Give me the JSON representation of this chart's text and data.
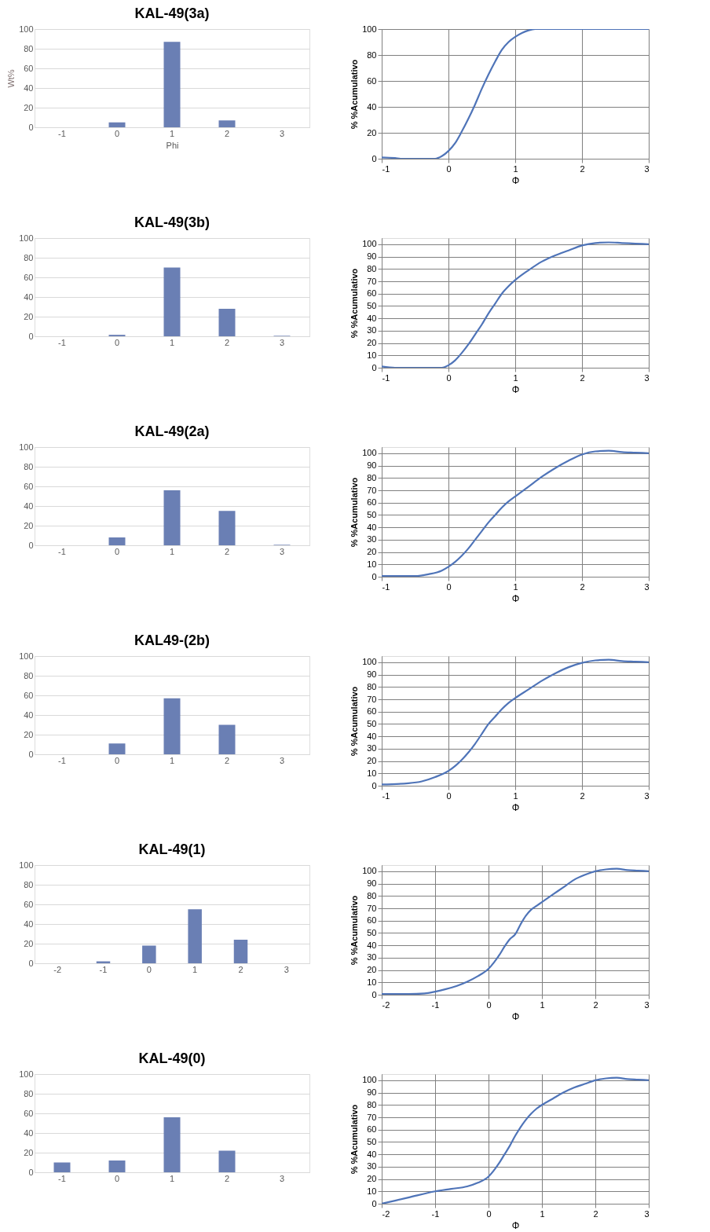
{
  "chart_data": [
    {
      "type": "bar",
      "title": "KAL-49(3a)",
      "xlabel": "Phi",
      "ylabel": "Wt%",
      "categories": [
        "-1",
        "0",
        "1",
        "2",
        "3"
      ],
      "values": [
        0,
        5,
        87,
        7,
        0
      ],
      "color": "#6a7fb4",
      "ylim": [
        0,
        100
      ],
      "yticks": [
        0,
        20,
        40,
        60,
        80,
        100
      ],
      "grid": "y"
    },
    {
      "type": "line",
      "xlabel": "Φ",
      "ylabel": "% %Acumulativo",
      "color": "#4f74b8",
      "x": [
        -1,
        -0.8,
        -0.7,
        -0.2,
        -0.1,
        0,
        0.1,
        0.2,
        0.3,
        0.4,
        0.5,
        0.6,
        0.7,
        0.8,
        0.9,
        1,
        1.1,
        1.2,
        1.3,
        2,
        3
      ],
      "values": [
        1,
        0.5,
        0,
        0,
        2,
        6,
        12,
        21,
        31,
        42,
        54,
        65,
        75,
        84,
        90,
        94,
        97,
        99,
        100,
        100,
        100
      ],
      "xlim": [
        -1,
        3
      ],
      "xticks": [
        -1,
        0,
        1,
        2,
        3
      ],
      "ylim": [
        0,
        100
      ],
      "yticks": [
        0,
        20,
        40,
        60,
        80,
        100
      ],
      "grid": true
    },
    {
      "type": "bar",
      "title": "KAL-49(3b)",
      "categories": [
        "-1",
        "0",
        "1",
        "2",
        "3"
      ],
      "values": [
        0,
        1.5,
        70,
        28,
        0.5
      ],
      "color": "#6a7fb4",
      "ylim": [
        0,
        100
      ],
      "yticks": [
        0,
        20,
        40,
        60,
        80,
        100
      ],
      "grid": "y"
    },
    {
      "type": "line",
      "xlabel": "Φ",
      "ylabel": "% %Acumulativo",
      "color": "#4f74b8",
      "x": [
        -1,
        -0.8,
        -0.1,
        0,
        0.1,
        0.2,
        0.3,
        0.4,
        0.5,
        0.6,
        0.7,
        0.8,
        0.9,
        1,
        1.2,
        1.4,
        1.6,
        1.8,
        2,
        2.2,
        2.4,
        2.6,
        2.8,
        3
      ],
      "values": [
        1,
        0,
        0,
        2,
        6,
        12,
        19,
        27,
        35,
        44,
        52,
        60,
        66,
        71,
        79,
        86,
        91,
        95,
        99,
        101,
        101.5,
        101,
        100.5,
        100
      ],
      "xlim": [
        -1,
        3
      ],
      "xticks": [
        -1,
        0,
        1,
        2,
        3
      ],
      "ylim": [
        0,
        105
      ],
      "yticks": [
        0,
        10,
        20,
        30,
        40,
        50,
        60,
        70,
        80,
        90,
        100
      ],
      "grid": true
    },
    {
      "type": "bar",
      "title": "KAL-49(2a)",
      "categories": [
        "-1",
        "0",
        "1",
        "2",
        "3"
      ],
      "values": [
        0,
        8,
        56,
        35,
        0.5
      ],
      "color": "#6a7fb4",
      "ylim": [
        0,
        100
      ],
      "yticks": [
        0,
        20,
        40,
        60,
        80,
        100
      ],
      "grid": "y"
    },
    {
      "type": "line",
      "xlabel": "Φ",
      "ylabel": "% %Acumulativo",
      "color": "#4f74b8",
      "x": [
        -1,
        -0.5,
        -0.3,
        -0.1,
        0,
        0.1,
        0.2,
        0.3,
        0.4,
        0.5,
        0.6,
        0.7,
        0.8,
        0.9,
        1,
        1.2,
        1.4,
        1.6,
        1.8,
        2,
        2.2,
        2.4,
        2.6,
        2.8,
        3
      ],
      "values": [
        0.5,
        0.5,
        2,
        5,
        8,
        12,
        17,
        23,
        30,
        37,
        44,
        50,
        56,
        61,
        65,
        73,
        81,
        88,
        94,
        99,
        101.5,
        102,
        101,
        100.5,
        100
      ],
      "xlim": [
        -1,
        3
      ],
      "xticks": [
        -1,
        0,
        1,
        2,
        3
      ],
      "ylim": [
        0,
        105
      ],
      "yticks": [
        0,
        10,
        20,
        30,
        40,
        50,
        60,
        70,
        80,
        90,
        100
      ],
      "grid": true
    },
    {
      "type": "bar",
      "title": "KAL49-(2b)",
      "categories": [
        "-1",
        "0",
        "1",
        "2",
        "3"
      ],
      "values": [
        null,
        11,
        57,
        30,
        null
      ],
      "color": "#6a7fb4",
      "ylim": [
        0,
        100
      ],
      "yticks": [
        0,
        20,
        40,
        60,
        80,
        100
      ],
      "grid": "y"
    },
    {
      "type": "line",
      "xlabel": "Φ",
      "ylabel": "% %Acumulativo",
      "color": "#4f74b8",
      "x": [
        -1,
        -0.6,
        -0.4,
        -0.2,
        0,
        0.1,
        0.2,
        0.3,
        0.4,
        0.5,
        0.6,
        0.7,
        0.8,
        0.9,
        1,
        1.2,
        1.4,
        1.6,
        1.8,
        2,
        2.2,
        2.4,
        2.6,
        2.8,
        3
      ],
      "values": [
        1,
        2,
        3.5,
        7,
        12,
        16,
        21,
        27,
        34,
        42,
        50,
        56,
        62,
        67,
        71,
        78,
        85,
        91,
        96,
        99.5,
        101.5,
        102,
        101,
        100.5,
        100
      ],
      "xlim": [
        -1,
        3
      ],
      "xticks": [
        -1,
        0,
        1,
        2,
        3
      ],
      "ylim": [
        0,
        105
      ],
      "yticks": [
        0,
        10,
        20,
        30,
        40,
        50,
        60,
        70,
        80,
        90,
        100
      ],
      "grid": true
    },
    {
      "type": "bar",
      "title": "KAL-49(1)",
      "categories": [
        "-2",
        "-1",
        "0",
        "1",
        "2",
        "3"
      ],
      "values": [
        0,
        2,
        18,
        55,
        24,
        0
      ],
      "color": "#6a7fb4",
      "ylim": [
        0,
        100
      ],
      "yticks": [
        0,
        20,
        40,
        60,
        80,
        100
      ],
      "grid": "y"
    },
    {
      "type": "line",
      "xlabel": "Φ",
      "ylabel": "% %Acumulativo",
      "color": "#4f74b8",
      "x": [
        -2,
        -1.5,
        -1.2,
        -1,
        -0.8,
        -0.6,
        -0.4,
        -0.2,
        0,
        0.1,
        0.2,
        0.3,
        0.4,
        0.5,
        0.6,
        0.7,
        0.8,
        0.9,
        1,
        1.2,
        1.4,
        1.6,
        1.8,
        2,
        2.2,
        2.4,
        2.6,
        2.8,
        3
      ],
      "values": [
        0.5,
        0.5,
        1,
        2.5,
        4.5,
        7,
        10.5,
        15,
        21,
        26,
        32,
        39,
        45,
        49,
        57,
        64,
        69,
        72,
        75,
        81,
        87,
        93,
        97,
        100,
        101.5,
        102,
        101,
        100.5,
        100
      ],
      "xlim": [
        -2,
        3
      ],
      "xticks": [
        -2,
        -1,
        0,
        1,
        2,
        3
      ],
      "ylim": [
        0,
        105
      ],
      "yticks": [
        0,
        10,
        20,
        30,
        40,
        50,
        60,
        70,
        80,
        90,
        100
      ],
      "grid": true
    },
    {
      "type": "bar",
      "title": "KAL-49(0)",
      "categories": [
        "-1",
        "0",
        "1",
        "2",
        "3"
      ],
      "values": [
        10,
        12,
        56,
        22,
        0
      ],
      "color": "#6a7fb4",
      "ylim": [
        0,
        100
      ],
      "yticks": [
        0,
        20,
        40,
        60,
        80,
        100
      ],
      "grid": "y"
    },
    {
      "type": "line",
      "xlabel": "Φ",
      "ylabel": "% %Acumulativo",
      "color": "#4f74b8",
      "x": [
        -2,
        -1.5,
        -1,
        -0.7,
        -0.4,
        -0.2,
        0,
        0.1,
        0.2,
        0.3,
        0.4,
        0.5,
        0.6,
        0.7,
        0.8,
        0.9,
        1,
        1.2,
        1.4,
        1.6,
        1.8,
        2,
        2.2,
        2.4,
        2.6,
        2.8,
        3
      ],
      "values": [
        0,
        5,
        10,
        12,
        14,
        17,
        22,
        27,
        33,
        40,
        47,
        55,
        62,
        68,
        73,
        77,
        80,
        85,
        90,
        94,
        97,
        100,
        101.5,
        102,
        101,
        100.5,
        100
      ],
      "xlim": [
        -2,
        3
      ],
      "xticks": [
        -2,
        -1,
        0,
        1,
        2,
        3
      ],
      "ylim": [
        0,
        105
      ],
      "yticks": [
        0,
        10,
        20,
        30,
        40,
        50,
        60,
        70,
        80,
        90,
        100
      ],
      "grid": true
    }
  ]
}
